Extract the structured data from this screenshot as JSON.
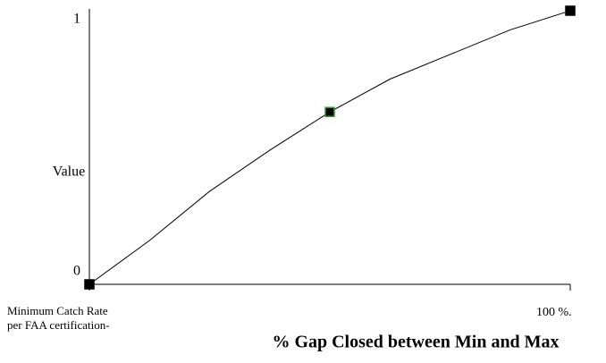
{
  "chart_data": {
    "type": "line",
    "xlabel": "% Gap Closed between Min and Max",
    "ylabel": "Value",
    "x": [
      0,
      12.5,
      25,
      37.5,
      50,
      62.5,
      75,
      87.5,
      100
    ],
    "values": [
      0,
      0.16,
      0.34,
      0.49,
      0.63,
      0.75,
      0.84,
      0.93,
      1
    ],
    "color": "#000000",
    "marked": [
      0,
      4,
      8
    ],
    "marker_colors": [
      "#000000",
      "#000000",
      "#000000"
    ],
    "marker_edge_colors": [
      "#000000",
      "#2e9e2e",
      "#000000"
    ],
    "xlim": [
      0,
      100
    ],
    "ylim": [
      0,
      1
    ],
    "xticks": [
      {
        "value": 0,
        "label": "Minimum Catch Rate\nper FAA certification-"
      },
      {
        "value": 100,
        "label": "100 %."
      }
    ],
    "yticks": [
      0,
      1
    ],
    "grid": false
  }
}
